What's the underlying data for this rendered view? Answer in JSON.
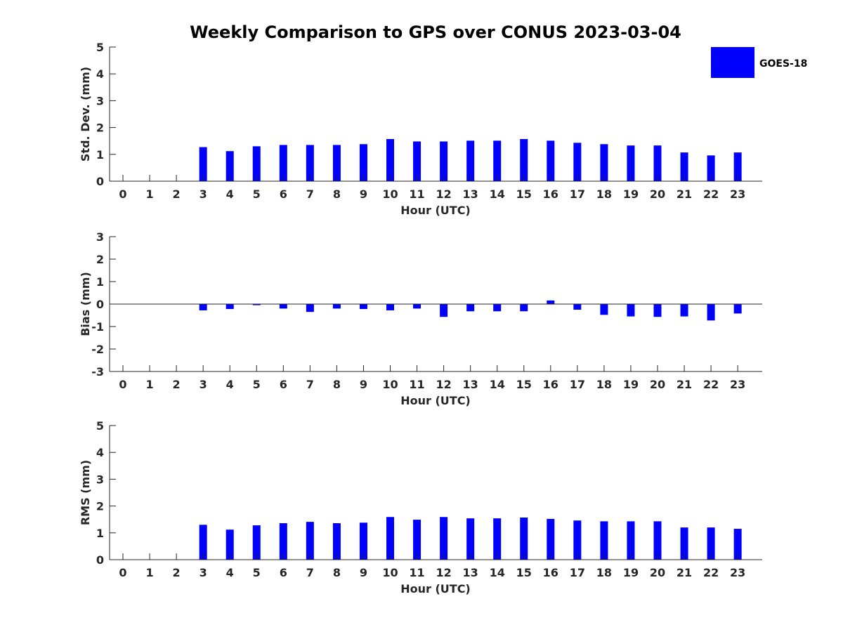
{
  "title": "Weekly Comparison to GPS over CONUS 2023-03-04",
  "legend": {
    "label": "GOES-18",
    "color": "#0000ff",
    "placement": "top-right"
  },
  "colors": {
    "bar": "#0000ff",
    "axis": "#262626",
    "background": "#ffffff"
  },
  "chart_data": [
    {
      "type": "bar",
      "ylabel": "Std. Dev. (mm)",
      "xlabel": "Hour (UTC)",
      "ylim": [
        0,
        5
      ],
      "yticks": [
        0,
        1,
        2,
        3,
        4,
        5
      ],
      "categories": [
        "0",
        "1",
        "2",
        "3",
        "4",
        "5",
        "6",
        "7",
        "8",
        "9",
        "10",
        "11",
        "12",
        "13",
        "14",
        "15",
        "16",
        "17",
        "18",
        "19",
        "20",
        "21",
        "22",
        "23"
      ],
      "series": [
        {
          "name": "GOES-18",
          "values": [
            null,
            null,
            null,
            1.27,
            1.12,
            1.3,
            1.35,
            1.35,
            1.35,
            1.38,
            1.57,
            1.48,
            1.48,
            1.51,
            1.51,
            1.57,
            1.51,
            1.43,
            1.38,
            1.33,
            1.33,
            1.07,
            0.96,
            1.07
          ]
        }
      ],
      "grid": false
    },
    {
      "type": "bar",
      "ylabel": "Bias (mm)",
      "xlabel": "Hour (UTC)",
      "ylim": [
        -3,
        3
      ],
      "yticks": [
        -3,
        -2,
        -1,
        0,
        1,
        2,
        3
      ],
      "zero_line": true,
      "categories": [
        "0",
        "1",
        "2",
        "3",
        "4",
        "5",
        "6",
        "7",
        "8",
        "9",
        "10",
        "11",
        "12",
        "13",
        "14",
        "15",
        "16",
        "17",
        "18",
        "19",
        "20",
        "21",
        "22",
        "23"
      ],
      "series": [
        {
          "name": "GOES-18",
          "values": [
            null,
            null,
            null,
            -0.28,
            -0.22,
            -0.05,
            -0.2,
            -0.35,
            -0.2,
            -0.22,
            -0.28,
            -0.2,
            -0.57,
            -0.32,
            -0.32,
            -0.32,
            0.16,
            -0.25,
            -0.48,
            -0.55,
            -0.57,
            -0.55,
            -0.73,
            -0.42
          ]
        }
      ],
      "grid": false
    },
    {
      "type": "bar",
      "ylabel": "RMS (mm)",
      "xlabel": "Hour (UTC)",
      "ylim": [
        0,
        5
      ],
      "yticks": [
        0,
        1,
        2,
        3,
        4,
        5
      ],
      "categories": [
        "0",
        "1",
        "2",
        "3",
        "4",
        "5",
        "6",
        "7",
        "8",
        "9",
        "10",
        "11",
        "12",
        "13",
        "14",
        "15",
        "16",
        "17",
        "18",
        "19",
        "20",
        "21",
        "22",
        "23"
      ],
      "series": [
        {
          "name": "GOES-18",
          "values": [
            null,
            null,
            null,
            1.3,
            1.12,
            1.28,
            1.36,
            1.41,
            1.36,
            1.38,
            1.59,
            1.49,
            1.59,
            1.54,
            1.54,
            1.57,
            1.52,
            1.46,
            1.43,
            1.43,
            1.43,
            1.2,
            1.2,
            1.15
          ]
        }
      ],
      "grid": false
    }
  ]
}
